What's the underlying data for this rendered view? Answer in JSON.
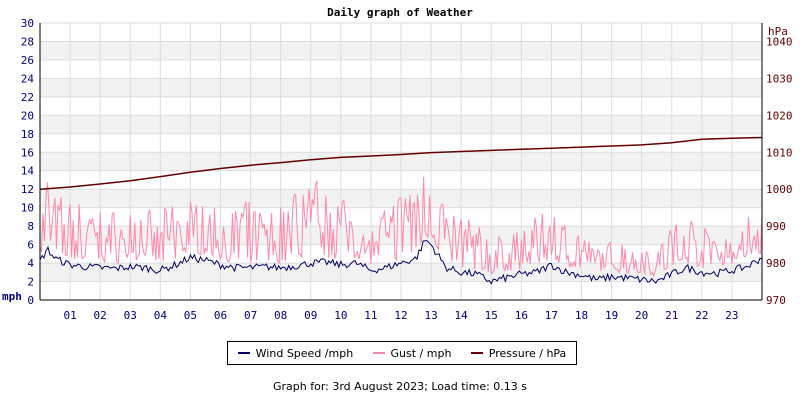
{
  "chart_data": {
    "type": "line",
    "title": "Daily graph of Weather",
    "footer": "Graph for: 3rd August 2023; Load time: 0.13 s",
    "left_axis": {
      "label": "mph",
      "range": [
        0,
        30
      ],
      "ticks": [
        0,
        2,
        4,
        6,
        8,
        10,
        12,
        14,
        16,
        18,
        20,
        22,
        24,
        26,
        28,
        30
      ]
    },
    "right_axis": {
      "label": "hPa",
      "range": [
        970,
        1045
      ],
      "ticks": [
        970,
        980,
        990,
        1000,
        1010,
        1020,
        1030,
        1040
      ]
    },
    "x_axis": {
      "range": [
        0,
        24
      ],
      "tick_labels": [
        "01",
        "02",
        "03",
        "04",
        "05",
        "06",
        "07",
        "08",
        "09",
        "10",
        "11",
        "12",
        "13",
        "14",
        "15",
        "16",
        "17",
        "18",
        "19",
        "20",
        "21",
        "22",
        "23"
      ]
    },
    "grid": true,
    "legend_position": "bottom",
    "series": [
      {
        "name": "Wind Speed /mph",
        "axis": "left",
        "color": "#000066",
        "x": [
          0,
          0.25,
          0.5,
          1,
          1.5,
          2,
          2.5,
          3,
          3.5,
          4,
          4.5,
          5,
          5.5,
          6,
          6.5,
          7,
          7.5,
          8,
          8.5,
          9,
          9.5,
          10,
          10.5,
          11,
          11.5,
          12,
          12.5,
          12.8,
          13,
          13.5,
          14,
          14.5,
          15,
          15.5,
          16,
          16.5,
          17,
          17.5,
          18,
          18.5,
          19,
          19.5,
          20,
          20.5,
          21,
          21.5,
          22,
          22.5,
          23,
          23.5,
          24
        ],
        "y": [
          4.2,
          5.5,
          4.5,
          3.8,
          3.6,
          3.5,
          3.4,
          3.6,
          3.5,
          3.2,
          3.8,
          4.6,
          4.3,
          3.8,
          3.5,
          3.5,
          3.6,
          3.5,
          3.7,
          4.0,
          4.1,
          3.8,
          4.0,
          3.2,
          3.5,
          4.0,
          4.5,
          6.5,
          6.0,
          3.5,
          3.0,
          2.8,
          2.0,
          2.4,
          2.8,
          3.0,
          3.8,
          3.0,
          2.7,
          2.2,
          2.5,
          2.4,
          2.2,
          2.0,
          2.8,
          3.5,
          3.0,
          2.9,
          3.2,
          3.6,
          4.6
        ]
      },
      {
        "name": "Gust / mph",
        "axis": "left",
        "color": "#ff88aa",
        "x": [
          0,
          0.25,
          0.5,
          1,
          1.5,
          2,
          2.5,
          3,
          3.5,
          4,
          4.5,
          5,
          5.5,
          6,
          6.5,
          7,
          7.5,
          8,
          8.5,
          9,
          9.5,
          10,
          10.5,
          11,
          11.5,
          12,
          12.5,
          12.8,
          13,
          13.5,
          14,
          14.5,
          15,
          15.5,
          16,
          16.5,
          17,
          17.5,
          18,
          18.5,
          19,
          19.5,
          20,
          20.5,
          21,
          21.5,
          22,
          22.5,
          23,
          23.5,
          24
        ],
        "y": [
          9.0,
          15.0,
          12.0,
          11.0,
          10.5,
          10.0,
          9.8,
          9.5,
          10.0,
          9.8,
          10.5,
          11.0,
          10.2,
          10.0,
          10.5,
          10.8,
          10.0,
          10.5,
          13.0,
          14.5,
          12.0,
          10.8,
          11.5,
          8.0,
          10.0,
          12.0,
          13.0,
          16.0,
          14.5,
          10.0,
          9.0,
          8.5,
          6.5,
          7.5,
          8.5,
          9.0,
          10.0,
          8.5,
          7.0,
          6.0,
          6.5,
          6.5,
          6.0,
          6.0,
          8.5,
          9.5,
          8.0,
          7.5,
          8.0,
          9.0,
          10.5
        ]
      },
      {
        "name": "Pressure / hPa",
        "axis": "right",
        "color": "#660000",
        "x": [
          0,
          1,
          2,
          3,
          4,
          5,
          6,
          7,
          8,
          9,
          10,
          11,
          12,
          13,
          14,
          15,
          16,
          17,
          18,
          19,
          20,
          21,
          22,
          23,
          24
        ],
        "y": [
          1000.0,
          1000.6,
          1001.4,
          1002.3,
          1003.4,
          1004.6,
          1005.6,
          1006.5,
          1007.2,
          1008.0,
          1008.6,
          1009.0,
          1009.4,
          1009.9,
          1010.2,
          1010.5,
          1010.8,
          1011.1,
          1011.4,
          1011.7,
          1012.0,
          1012.6,
          1013.5,
          1013.8,
          1014.0
        ]
      }
    ]
  }
}
